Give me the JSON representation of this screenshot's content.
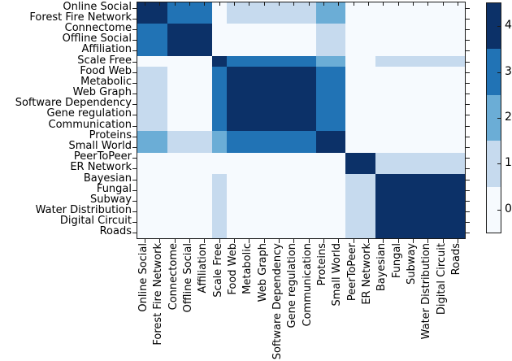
{
  "chart_data": {
    "type": "heatmap",
    "title": "",
    "xlabel": "",
    "ylabel": "",
    "grid": false,
    "vmin": 0,
    "vmax": 4,
    "legend_position": "right-colorbar",
    "categories": [
      "Online Social",
      "Forest Fire Network",
      "Connectome",
      "Offline Social",
      "Affiliation",
      "Scale Free",
      "Food Web",
      "Metabolic",
      "Web Graph",
      "Software Dependency",
      "Gene regulation",
      "Communication",
      "Proteins",
      "Small World",
      "PeerToPeer",
      "ER Network",
      "Bayesian",
      "Fungal",
      "Subway",
      "Water Distribution",
      "Digital Circuit",
      "Roads"
    ],
    "matrix": [
      [
        4,
        4,
        3,
        3,
        3,
        0,
        1,
        1,
        1,
        1,
        1,
        1,
        2,
        2,
        0,
        0,
        0,
        0,
        0,
        0,
        0,
        0
      ],
      [
        4,
        4,
        3,
        3,
        3,
        0,
        1,
        1,
        1,
        1,
        1,
        1,
        2,
        2,
        0,
        0,
        0,
        0,
        0,
        0,
        0,
        0
      ],
      [
        3,
        3,
        4,
        4,
        4,
        0,
        0,
        0,
        0,
        0,
        0,
        0,
        1,
        1,
        0,
        0,
        0,
        0,
        0,
        0,
        0,
        0
      ],
      [
        3,
        3,
        4,
        4,
        4,
        0,
        0,
        0,
        0,
        0,
        0,
        0,
        1,
        1,
        0,
        0,
        0,
        0,
        0,
        0,
        0,
        0
      ],
      [
        3,
        3,
        4,
        4,
        4,
        0,
        0,
        0,
        0,
        0,
        0,
        0,
        1,
        1,
        0,
        0,
        0,
        0,
        0,
        0,
        0,
        0
      ],
      [
        0,
        0,
        0,
        0,
        0,
        4,
        3,
        3,
        3,
        3,
        3,
        3,
        2,
        2,
        0,
        0,
        1,
        1,
        1,
        1,
        1,
        1
      ],
      [
        1,
        1,
        0,
        0,
        0,
        3,
        4,
        4,
        4,
        4,
        4,
        4,
        3,
        3,
        0,
        0,
        0,
        0,
        0,
        0,
        0,
        0
      ],
      [
        1,
        1,
        0,
        0,
        0,
        3,
        4,
        4,
        4,
        4,
        4,
        4,
        3,
        3,
        0,
        0,
        0,
        0,
        0,
        0,
        0,
        0
      ],
      [
        1,
        1,
        0,
        0,
        0,
        3,
        4,
        4,
        4,
        4,
        4,
        4,
        3,
        3,
        0,
        0,
        0,
        0,
        0,
        0,
        0,
        0
      ],
      [
        1,
        1,
        0,
        0,
        0,
        3,
        4,
        4,
        4,
        4,
        4,
        4,
        3,
        3,
        0,
        0,
        0,
        0,
        0,
        0,
        0,
        0
      ],
      [
        1,
        1,
        0,
        0,
        0,
        3,
        4,
        4,
        4,
        4,
        4,
        4,
        3,
        3,
        0,
        0,
        0,
        0,
        0,
        0,
        0,
        0
      ],
      [
        1,
        1,
        0,
        0,
        0,
        3,
        4,
        4,
        4,
        4,
        4,
        4,
        3,
        3,
        0,
        0,
        0,
        0,
        0,
        0,
        0,
        0
      ],
      [
        2,
        2,
        1,
        1,
        1,
        2,
        3,
        3,
        3,
        3,
        3,
        3,
        4,
        4,
        0,
        0,
        0,
        0,
        0,
        0,
        0,
        0
      ],
      [
        2,
        2,
        1,
        1,
        1,
        2,
        3,
        3,
        3,
        3,
        3,
        3,
        4,
        4,
        0,
        0,
        0,
        0,
        0,
        0,
        0,
        0
      ],
      [
        0,
        0,
        0,
        0,
        0,
        0,
        0,
        0,
        0,
        0,
        0,
        0,
        0,
        0,
        4,
        4,
        1,
        1,
        1,
        1,
        1,
        1
      ],
      [
        0,
        0,
        0,
        0,
        0,
        0,
        0,
        0,
        0,
        0,
        0,
        0,
        0,
        0,
        4,
        4,
        1,
        1,
        1,
        1,
        1,
        1
      ],
      [
        0,
        0,
        0,
        0,
        0,
        1,
        0,
        0,
        0,
        0,
        0,
        0,
        0,
        0,
        1,
        1,
        4,
        4,
        4,
        4,
        4,
        4
      ],
      [
        0,
        0,
        0,
        0,
        0,
        1,
        0,
        0,
        0,
        0,
        0,
        0,
        0,
        0,
        1,
        1,
        4,
        4,
        4,
        4,
        4,
        4
      ],
      [
        0,
        0,
        0,
        0,
        0,
        1,
        0,
        0,
        0,
        0,
        0,
        0,
        0,
        0,
        1,
        1,
        4,
        4,
        4,
        4,
        4,
        4
      ],
      [
        0,
        0,
        0,
        0,
        0,
        1,
        0,
        0,
        0,
        0,
        0,
        0,
        0,
        0,
        1,
        1,
        4,
        4,
        4,
        4,
        4,
        4
      ],
      [
        0,
        0,
        0,
        0,
        0,
        1,
        0,
        0,
        0,
        0,
        0,
        0,
        0,
        0,
        1,
        1,
        4,
        4,
        4,
        4,
        4,
        4
      ],
      [
        0,
        0,
        0,
        0,
        0,
        1,
        0,
        0,
        0,
        0,
        0,
        0,
        0,
        0,
        1,
        1,
        4,
        4,
        4,
        4,
        4,
        4
      ]
    ],
    "value_colors": {
      "0": "#f6fafe",
      "1": "#c6daee",
      "2": "#6badd6",
      "3": "#2173b5",
      "4": "#0c3168"
    },
    "colorbar": {
      "tick_labels": [
        "4",
        "3",
        "2",
        "1",
        "0"
      ],
      "band_values_top_to_bottom": [
        4,
        3,
        2,
        1,
        0
      ]
    }
  }
}
